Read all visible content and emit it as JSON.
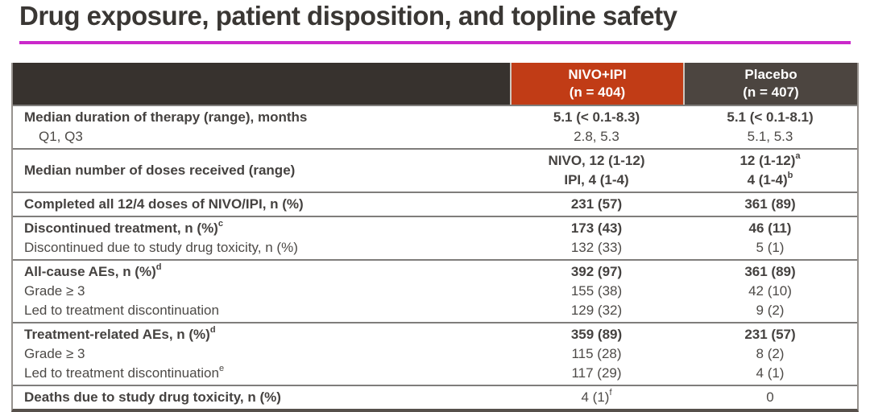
{
  "title": "Drug exposure, patient disposition, and topline safety",
  "colors": {
    "accent_rule": "#ca28ca",
    "header_dark": "#37322e",
    "header_nivo": "#c13c16",
    "header_placebo": "#4c4540",
    "body_text": "#4d4a47"
  },
  "table": {
    "columns": [
      {
        "name": "NIVO+IPI",
        "n": "(n = 404)"
      },
      {
        "name": "Placebo",
        "n": "(n = 407)"
      }
    ],
    "rows": [
      {
        "label": [
          {
            "text": "Median duration of therapy (range), months",
            "bold": true
          },
          {
            "text": "Q1, Q3",
            "indent": true
          }
        ],
        "nivo": [
          {
            "text": "5.1 (< 0.1-8.3)",
            "bold": true
          },
          {
            "text": "2.8, 5.3"
          }
        ],
        "placebo": [
          {
            "text": "5.1 (< 0.1-8.1)",
            "bold": true
          },
          {
            "text": "5.1, 5.3"
          }
        ]
      },
      {
        "label": [
          {
            "text": "Median number of doses received (range)",
            "bold": true
          }
        ],
        "nivo": [
          {
            "text": "NIVO, 12 (1-12)",
            "bold": true
          },
          {
            "text": "IPI, 4 (1-4)",
            "bold": true
          }
        ],
        "placebo": [
          {
            "text": "12 (1-12)",
            "bold": true,
            "sup": "a"
          },
          {
            "text": "4 (1-4)",
            "bold": true,
            "sup": "b"
          }
        ]
      },
      {
        "label": [
          {
            "text": "Completed all 12/4 doses of NIVO/IPI, n (%)",
            "bold": true
          }
        ],
        "nivo": [
          {
            "text": "231 (57)",
            "bold": true
          }
        ],
        "placebo": [
          {
            "text": "361 (89)",
            "bold": true
          }
        ]
      },
      {
        "label": [
          {
            "text": "Discontinued treatment, n (%)",
            "bold": true,
            "sup": "c"
          },
          {
            "text": "Discontinued due to study drug toxicity, n (%)"
          }
        ],
        "nivo": [
          {
            "text": "173 (43)",
            "bold": true
          },
          {
            "text": "132 (33)"
          }
        ],
        "placebo": [
          {
            "text": "46 (11)",
            "bold": true
          },
          {
            "text": "5 (1)"
          }
        ]
      },
      {
        "label": [
          {
            "text": "All-cause AEs, n (%)",
            "bold": true,
            "sup": "d"
          },
          {
            "text": "Grade ≥ 3"
          },
          {
            "text": "Led to treatment discontinuation"
          }
        ],
        "nivo": [
          {
            "text": "392 (97)",
            "bold": true
          },
          {
            "text": "155 (38)"
          },
          {
            "text": "129 (32)"
          }
        ],
        "placebo": [
          {
            "text": "361 (89)",
            "bold": true
          },
          {
            "text": "42 (10)"
          },
          {
            "text": "9 (2)"
          }
        ]
      },
      {
        "label": [
          {
            "text": "Treatment-related AEs, n (%)",
            "bold": true,
            "sup": "d"
          },
          {
            "text": "Grade ≥ 3"
          },
          {
            "text": "Led to treatment discontinuation",
            "sup": "e"
          }
        ],
        "nivo": [
          {
            "text": "359 (89)",
            "bold": true
          },
          {
            "text": "115 (28)"
          },
          {
            "text": "117 (29)"
          }
        ],
        "placebo": [
          {
            "text": "231 (57)",
            "bold": true
          },
          {
            "text": "8 (2)"
          },
          {
            "text": "4 (1)"
          }
        ]
      },
      {
        "label": [
          {
            "text": "Deaths due to study drug toxicity, n (%)",
            "bold": true
          }
        ],
        "nivo": [
          {
            "text": "4 (1)",
            "sup": "f"
          }
        ],
        "placebo": [
          {
            "text": "0"
          }
        ]
      }
    ]
  }
}
